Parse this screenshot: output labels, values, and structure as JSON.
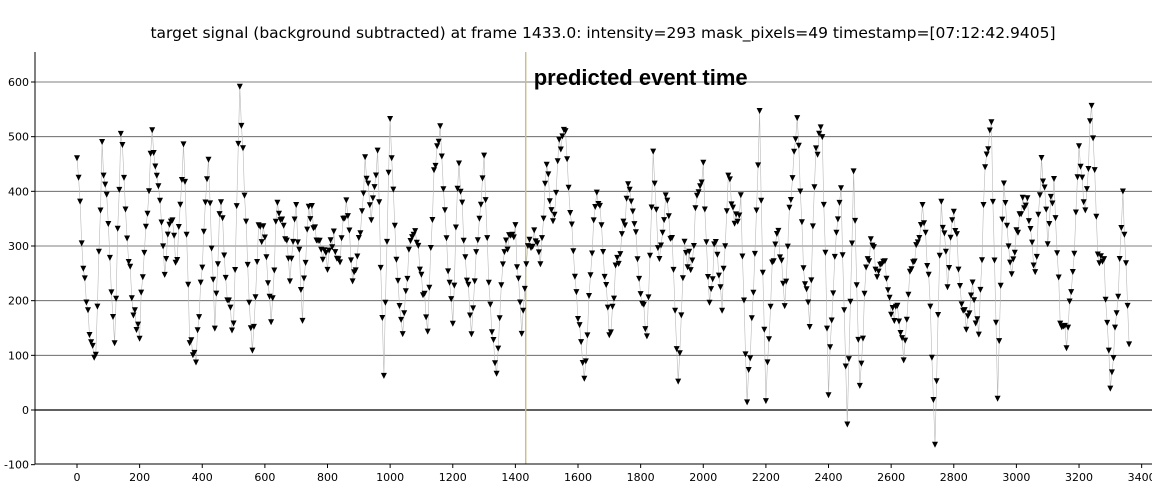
{
  "chart_data": {
    "type": "line",
    "title": "target signal (background subtracted) at frame 1433.0: intensity=293 mask_pixels=49 timestamp=[07:12:42.9405]",
    "xlabel": "",
    "ylabel": "",
    "xlim": [
      -50,
      3400
    ],
    "ylim": [
      -100,
      650
    ],
    "x_ticks": [
      0,
      200,
      400,
      600,
      800,
      1000,
      1200,
      1400,
      1600,
      1800,
      2000,
      2200,
      2400,
      2600,
      2800,
      3000,
      3200,
      3400
    ],
    "y_ticks": [
      -100,
      0,
      100,
      200,
      300,
      400,
      500,
      600
    ],
    "grid": "horizontal",
    "marker": "triangle-down",
    "point_spacing": 5,
    "marker_color": "#000000",
    "line_color": "#b8b8b8",
    "event_marker": {
      "x": 1433,
      "label": "predicted event time",
      "color": "#c5bf87"
    },
    "series": [
      {
        "name": "",
        "points": [
          [
            0,
            480
          ],
          [
            20,
            260
          ],
          [
            40,
            140
          ],
          [
            60,
            90
          ],
          [
            80,
            480
          ],
          [
            100,
            350
          ],
          [
            120,
            120
          ],
          [
            140,
            520
          ],
          [
            160,
            330
          ],
          [
            180,
            170
          ],
          [
            200,
            150
          ],
          [
            220,
            330
          ],
          [
            240,
            500
          ],
          [
            260,
            400
          ],
          [
            280,
            260
          ],
          [
            300,
            350
          ],
          [
            320,
            260
          ],
          [
            340,
            500
          ],
          [
            360,
            140
          ],
          [
            380,
            90
          ],
          [
            400,
            270
          ],
          [
            420,
            470
          ],
          [
            440,
            160
          ],
          [
            460,
            400
          ],
          [
            480,
            200
          ],
          [
            500,
            140
          ],
          [
            520,
            600
          ],
          [
            540,
            330
          ],
          [
            560,
            100
          ],
          [
            580,
            320
          ],
          [
            600,
            320
          ],
          [
            620,
            160
          ],
          [
            640,
            390
          ],
          [
            660,
            340
          ],
          [
            680,
            250
          ],
          [
            700,
            370
          ],
          [
            720,
            180
          ],
          [
            740,
            380
          ],
          [
            760,
            330
          ],
          [
            780,
            290
          ],
          [
            800,
            270
          ],
          [
            820,
            320
          ],
          [
            840,
            260
          ],
          [
            860,
            400
          ],
          [
            880,
            230
          ],
          [
            900,
            300
          ],
          [
            920,
            450
          ],
          [
            940,
            350
          ],
          [
            960,
            480
          ],
          [
            980,
            70
          ],
          [
            1000,
            540
          ],
          [
            1020,
            260
          ],
          [
            1040,
            150
          ],
          [
            1060,
            290
          ],
          [
            1080,
            330
          ],
          [
            1100,
            240
          ],
          [
            1120,
            150
          ],
          [
            1140,
            420
          ],
          [
            1160,
            520
          ],
          [
            1180,
            300
          ],
          [
            1200,
            170
          ],
          [
            1220,
            460
          ],
          [
            1240,
            280
          ],
          [
            1260,
            150
          ],
          [
            1280,
            330
          ],
          [
            1300,
            450
          ],
          [
            1320,
            180
          ],
          [
            1340,
            80
          ],
          [
            1360,
            260
          ],
          [
            1380,
            330
          ],
          [
            1400,
            320
          ],
          [
            1420,
            130
          ],
          [
            1440,
            310
          ],
          [
            1460,
            320
          ],
          [
            1480,
            270
          ],
          [
            1500,
            440
          ],
          [
            1520,
            330
          ],
          [
            1540,
            480
          ],
          [
            1560,
            500
          ],
          [
            1580,
            320
          ],
          [
            1600,
            170
          ],
          [
            1620,
            40
          ],
          [
            1640,
            250
          ],
          [
            1660,
            410
          ],
          [
            1680,
            300
          ],
          [
            1700,
            130
          ],
          [
            1720,
            250
          ],
          [
            1740,
            310
          ],
          [
            1760,
            400
          ],
          [
            1780,
            350
          ],
          [
            1800,
            220
          ],
          [
            1820,
            130
          ],
          [
            1840,
            470
          ],
          [
            1860,
            260
          ],
          [
            1880,
            400
          ],
          [
            1900,
            300
          ],
          [
            1920,
            60
          ],
          [
            1940,
            300
          ],
          [
            1960,
            260
          ],
          [
            1980,
            380
          ],
          [
            2000,
            440
          ],
          [
            2020,
            180
          ],
          [
            2040,
            320
          ],
          [
            2060,
            180
          ],
          [
            2080,
            440
          ],
          [
            2100,
            340
          ],
          [
            2120,
            380
          ],
          [
            2140,
            0
          ],
          [
            2160,
            220
          ],
          [
            2180,
            530
          ],
          [
            2200,
            10
          ],
          [
            2220,
            250
          ],
          [
            2240,
            330
          ],
          [
            2260,
            200
          ],
          [
            2280,
            400
          ],
          [
            2300,
            550
          ],
          [
            2320,
            250
          ],
          [
            2340,
            170
          ],
          [
            2360,
            470
          ],
          [
            2380,
            510
          ],
          [
            2400,
            40
          ],
          [
            2420,
            290
          ],
          [
            2440,
            410
          ],
          [
            2460,
            -40
          ],
          [
            2480,
            440
          ],
          [
            2500,
            40
          ],
          [
            2520,
            250
          ],
          [
            2540,
            310
          ],
          [
            2560,
            240
          ],
          [
            2580,
            270
          ],
          [
            2600,
            160
          ],
          [
            2620,
            190
          ],
          [
            2640,
            110
          ],
          [
            2660,
            240
          ],
          [
            2680,
            290
          ],
          [
            2700,
            360
          ],
          [
            2720,
            250
          ],
          [
            2740,
            -60
          ],
          [
            2760,
            380
          ],
          [
            2780,
            240
          ],
          [
            2800,
            380
          ],
          [
            2820,
            230
          ],
          [
            2840,
            150
          ],
          [
            2860,
            220
          ],
          [
            2880,
            130
          ],
          [
            2900,
            450
          ],
          [
            2920,
            520
          ],
          [
            2940,
            30
          ],
          [
            2960,
            430
          ],
          [
            2980,
            250
          ],
          [
            3000,
            310
          ],
          [
            3020,
            390
          ],
          [
            3040,
            360
          ],
          [
            3060,
            240
          ],
          [
            3080,
            460
          ],
          [
            3100,
            320
          ],
          [
            3120,
            420
          ],
          [
            3140,
            170
          ],
          [
            3160,
            130
          ],
          [
            3180,
            240
          ],
          [
            3200,
            480
          ],
          [
            3220,
            350
          ],
          [
            3240,
            570
          ],
          [
            3260,
            270
          ],
          [
            3280,
            280
          ],
          [
            3300,
            30
          ],
          [
            3320,
            170
          ],
          [
            3340,
            380
          ],
          [
            3360,
            120
          ]
        ]
      }
    ]
  }
}
